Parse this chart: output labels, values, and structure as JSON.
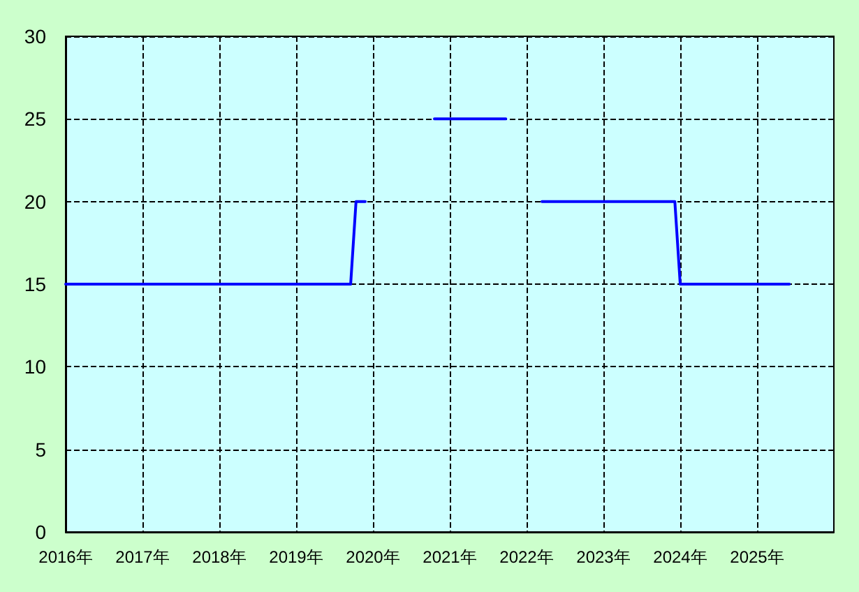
{
  "chart_data": {
    "type": "line",
    "x": [
      2016,
      2019.71,
      2019.78,
      2019.9,
      2020.3,
      2020.8,
      2021.73,
      2022.0,
      2022.2,
      2023.93,
      2024.0,
      2025.42
    ],
    "series": [
      {
        "color": "#0000ff",
        "values": [
          15,
          15,
          20,
          20,
          null,
          25,
          25,
          null,
          20,
          20,
          15,
          15
        ]
      }
    ],
    "xlim": [
      2016,
      2026
    ],
    "xticks": [
      {
        "value": 2016,
        "label": "2016年"
      },
      {
        "value": 2017,
        "label": "2017年"
      },
      {
        "value": 2018,
        "label": "2018年"
      },
      {
        "value": 2019,
        "label": "2019年"
      },
      {
        "value": 2020,
        "label": "2020年"
      },
      {
        "value": 2021,
        "label": "2021年"
      },
      {
        "value": 2022,
        "label": "2022年"
      },
      {
        "value": 2023,
        "label": "2023年"
      },
      {
        "value": 2024,
        "label": "2024年"
      },
      {
        "value": 2025,
        "label": "2025年"
      }
    ],
    "ylim": [
      0,
      30
    ],
    "yticks": [
      0,
      5,
      10,
      15,
      20,
      25,
      30
    ],
    "grid": true
  }
}
